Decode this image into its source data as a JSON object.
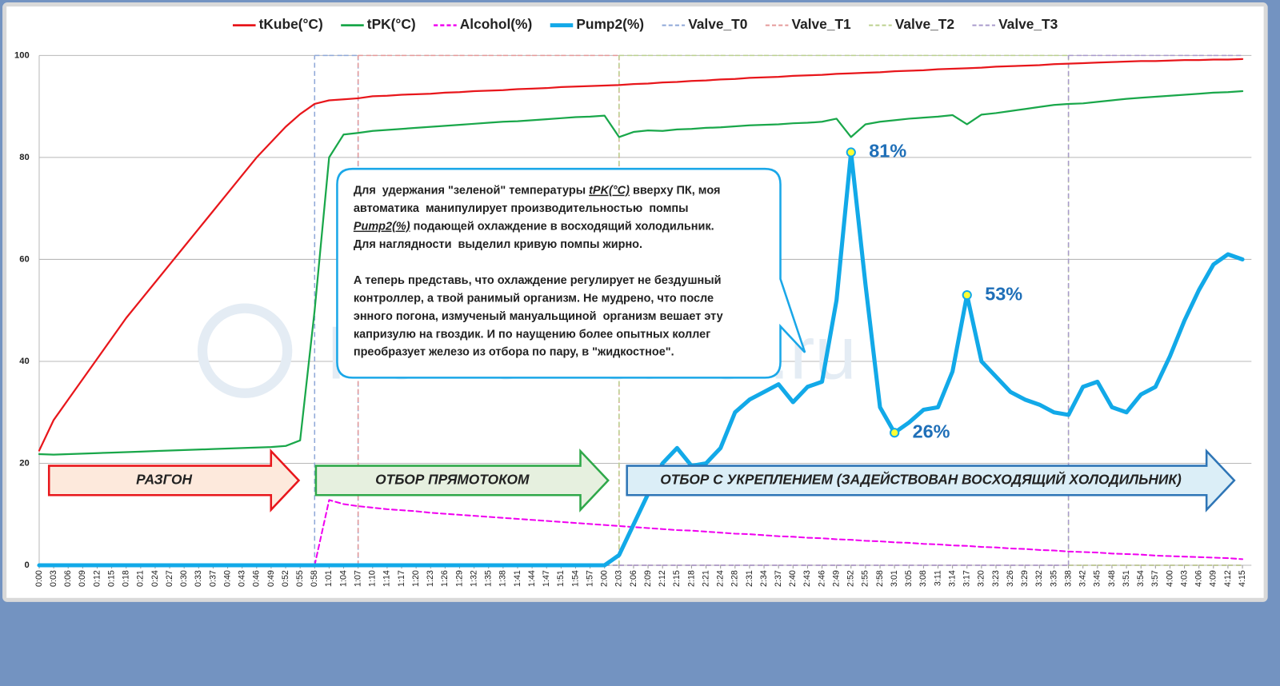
{
  "chart_data": {
    "type": "line",
    "categories": [
      "0:00",
      "0:03",
      "0:06",
      "0:09",
      "0:12",
      "0:15",
      "0:18",
      "0:21",
      "0:24",
      "0:27",
      "0:30",
      "0:33",
      "0:37",
      "0:40",
      "0:43",
      "0:46",
      "0:49",
      "0:52",
      "0:55",
      "0:58",
      "1:01",
      "1:04",
      "1:07",
      "1:10",
      "1:14",
      "1:17",
      "1:20",
      "1:23",
      "1:26",
      "1:29",
      "1:32",
      "1:35",
      "1:38",
      "1:41",
      "1:44",
      "1:47",
      "1:51",
      "1:54",
      "1:57",
      "2:00",
      "2:03",
      "2:06",
      "2:09",
      "2:12",
      "2:15",
      "2:18",
      "2:21",
      "2:24",
      "2:28",
      "2:31",
      "2:34",
      "2:37",
      "2:40",
      "2:43",
      "2:46",
      "2:49",
      "2:52",
      "2:55",
      "2:58",
      "3:01",
      "3:05",
      "3:08",
      "3:11",
      "3:14",
      "3:17",
      "3:20",
      "3:23",
      "3:26",
      "3:29",
      "3:32",
      "3:35",
      "3:38",
      "3:42",
      "3:45",
      "3:48",
      "3:51",
      "3:54",
      "3:57",
      "4:00",
      "4:03",
      "4:06",
      "4:09",
      "4:12",
      "4:15"
    ],
    "ylim": [
      0,
      100
    ],
    "yticks": [
      0,
      20,
      40,
      60,
      80,
      100
    ],
    "grid": true,
    "legend": "top",
    "series": [
      {
        "name": "tKube(°C)",
        "color": "#e8161b",
        "line_width": 2.2,
        "line_style": "solid",
        "values": [
          22.5,
          28.5,
          32.5,
          36.5,
          40.5,
          44.5,
          48.5,
          52,
          55.5,
          59,
          62.5,
          66,
          69.5,
          73,
          76.5,
          80,
          83,
          86,
          88.5,
          90.5,
          91.2,
          91.4,
          91.6,
          92,
          92.1,
          92.3,
          92.4,
          92.5,
          92.7,
          92.8,
          93,
          93.1,
          93.2,
          93.4,
          93.5,
          93.6,
          93.8,
          93.9,
          94,
          94.1,
          94.2,
          94.4,
          94.5,
          94.7,
          94.8,
          95,
          95.1,
          95.3,
          95.4,
          95.6,
          95.7,
          95.8,
          96,
          96.1,
          96.2,
          96.4,
          96.5,
          96.6,
          96.7,
          96.9,
          97,
          97.1,
          97.3,
          97.4,
          97.5,
          97.6,
          97.8,
          97.9,
          98,
          98.1,
          98.3,
          98.4,
          98.5,
          98.6,
          98.7,
          98.8,
          98.9,
          98.9,
          99,
          99.1,
          99.1,
          99.2,
          99.2,
          99.3
        ]
      },
      {
        "name": "tPK(°C)",
        "color": "#19a74a",
        "line_width": 2.2,
        "line_style": "solid",
        "values": [
          21.8,
          21.7,
          21.8,
          21.9,
          22,
          22.1,
          22.2,
          22.3,
          22.4,
          22.5,
          22.6,
          22.7,
          22.8,
          22.9,
          23,
          23.1,
          23.2,
          23.4,
          24.5,
          50,
          80,
          84.5,
          84.8,
          85.2,
          85.4,
          85.6,
          85.8,
          86,
          86.2,
          86.4,
          86.6,
          86.8,
          87,
          87.1,
          87.3,
          87.5,
          87.7,
          87.9,
          88,
          88.2,
          84,
          85,
          85.3,
          85.2,
          85.5,
          85.6,
          85.8,
          85.9,
          86.1,
          86.3,
          86.4,
          86.5,
          86.7,
          86.8,
          87,
          87.6,
          84,
          86.5,
          87,
          87.3,
          87.6,
          87.8,
          88,
          88.3,
          86.5,
          88.4,
          88.7,
          89.1,
          89.5,
          89.9,
          90.3,
          90.5,
          90.6,
          90.9,
          91.2,
          91.5,
          91.7,
          91.9,
          92.1,
          92.3,
          92.5,
          92.7,
          92.8,
          93
        ]
      },
      {
        "name": "Alcohol(%)",
        "color": "#f000f0",
        "line_width": 2,
        "line_style": "dashed",
        "values": [
          null,
          null,
          null,
          null,
          null,
          null,
          null,
          null,
          null,
          null,
          null,
          null,
          null,
          null,
          null,
          null,
          null,
          null,
          null,
          0,
          12.8,
          12,
          11.6,
          11.3,
          11,
          10.8,
          10.6,
          10.3,
          10.1,
          9.9,
          9.7,
          9.5,
          9.3,
          9.1,
          8.9,
          8.7,
          8.5,
          8.3,
          8.1,
          7.9,
          7.7,
          7.5,
          7.3,
          7.1,
          6.9,
          6.8,
          6.6,
          6.4,
          6.2,
          6.1,
          5.9,
          5.7,
          5.6,
          5.4,
          5.3,
          5.1,
          5,
          4.8,
          4.7,
          4.5,
          4.4,
          4.2,
          4.1,
          3.9,
          3.8,
          3.6,
          3.5,
          3.3,
          3.2,
          3,
          2.9,
          2.7,
          2.6,
          2.5,
          2.3,
          2.2,
          2.1,
          1.9,
          1.8,
          1.7,
          1.6,
          1.5,
          1.4,
          1.2
        ]
      },
      {
        "name": "Pump2(%)",
        "color": "#12a9e8",
        "line_width": 5,
        "line_style": "solid",
        "values": [
          0,
          0,
          0,
          0,
          0,
          0,
          0,
          0,
          0,
          0,
          0,
          0,
          0,
          0,
          0,
          0,
          0,
          0,
          0,
          0,
          0,
          0,
          0,
          0,
          0,
          0,
          0,
          0,
          0,
          0,
          0,
          0,
          0,
          0,
          0,
          0,
          0,
          0,
          0,
          0,
          2,
          8,
          14,
          20,
          23,
          19.5,
          20,
          23,
          30,
          32.5,
          34,
          35.5,
          32,
          35,
          36,
          52,
          81,
          55,
          31,
          26,
          28,
          30.5,
          31,
          38,
          53,
          40,
          37,
          34,
          32.5,
          31.5,
          30,
          29.5,
          35,
          36,
          31,
          30,
          33.5,
          35,
          41,
          48,
          54,
          59,
          61,
          60
        ],
        "value_labels": [
          null,
          null,
          null,
          null,
          null,
          null,
          null,
          null,
          null,
          null,
          null,
          null,
          null,
          null,
          null,
          null,
          null,
          null,
          null,
          null,
          null,
          null,
          null,
          null,
          null,
          null,
          null,
          null,
          null,
          null,
          null,
          null,
          null,
          null,
          null,
          null,
          null,
          null,
          null,
          null,
          null,
          null,
          null,
          null,
          null,
          null,
          null,
          null,
          null,
          null,
          null,
          null,
          null,
          null,
          null,
          null,
          "81%",
          null,
          null,
          "26%",
          null,
          null,
          null,
          null,
          "53%",
          null,
          null,
          null,
          null,
          null,
          null,
          null,
          null,
          null,
          null,
          null,
          null,
          null,
          null,
          null,
          null,
          null,
          null,
          null
        ]
      },
      {
        "name": "Valve_T0",
        "color": "#8fa8d8",
        "line_width": 1.5,
        "line_style": "dashed",
        "step": true,
        "values": [
          0,
          0,
          0,
          0,
          0,
          0,
          0,
          0,
          0,
          0,
          0,
          0,
          0,
          0,
          0,
          0,
          0,
          0,
          0,
          100,
          100,
          100,
          0,
          0,
          0,
          0,
          0,
          0,
          0,
          0,
          0,
          0,
          0,
          0,
          0,
          0,
          0,
          0,
          0,
          0,
          0,
          0,
          0,
          0,
          0,
          0,
          0,
          0,
          0,
          0,
          0,
          0,
          0,
          0,
          0,
          0,
          0,
          0,
          0,
          0,
          0,
          0,
          0,
          0,
          0,
          0,
          0,
          0,
          0,
          0,
          0,
          0,
          0,
          0,
          0,
          0,
          0,
          0,
          0,
          0,
          0,
          0,
          0,
          0
        ]
      },
      {
        "name": "Valve_T1",
        "color": "#e59a9a",
        "line_width": 1.5,
        "line_style": "dashed",
        "step": true,
        "values": [
          0,
          0,
          0,
          0,
          0,
          0,
          0,
          0,
          0,
          0,
          0,
          0,
          0,
          0,
          0,
          0,
          0,
          0,
          0,
          0,
          0,
          0,
          100,
          100,
          100,
          100,
          100,
          100,
          100,
          100,
          100,
          100,
          100,
          100,
          100,
          100,
          100,
          100,
          100,
          100,
          0,
          0,
          0,
          0,
          0,
          0,
          0,
          0,
          0,
          0,
          0,
          0,
          0,
          0,
          0,
          0,
          0,
          0,
          0,
          0,
          0,
          0,
          0,
          0,
          0,
          0,
          0,
          0,
          0,
          0,
          0,
          0,
          0,
          0,
          0,
          0,
          0,
          0,
          0,
          0,
          0,
          0,
          0,
          0
        ]
      },
      {
        "name": "Valve_T2",
        "color": "#bcd18f",
        "line_width": 1.5,
        "line_style": "dashed",
        "step": true,
        "values": [
          0,
          0,
          0,
          0,
          0,
          0,
          0,
          0,
          0,
          0,
          0,
          0,
          0,
          0,
          0,
          0,
          0,
          0,
          0,
          0,
          0,
          0,
          0,
          0,
          0,
          0,
          0,
          0,
          0,
          0,
          0,
          0,
          0,
          0,
          0,
          0,
          0,
          0,
          0,
          0,
          100,
          100,
          100,
          100,
          100,
          100,
          100,
          100,
          100,
          100,
          100,
          100,
          100,
          100,
          100,
          100,
          100,
          100,
          100,
          100,
          100,
          100,
          100,
          100,
          100,
          100,
          100,
          100,
          100,
          100,
          100,
          0,
          0,
          0,
          0,
          0,
          0,
          0,
          0,
          0,
          0,
          0,
          0,
          0
        ]
      },
      {
        "name": "Valve_T3",
        "color": "#a99bcc",
        "line_width": 1.5,
        "line_style": "dashed",
        "step": true,
        "values": [
          0,
          0,
          0,
          0,
          0,
          0,
          0,
          0,
          0,
          0,
          0,
          0,
          0,
          0,
          0,
          0,
          0,
          0,
          0,
          0,
          0,
          0,
          0,
          0,
          0,
          0,
          0,
          0,
          0,
          0,
          0,
          0,
          0,
          0,
          0,
          0,
          0,
          0,
          0,
          0,
          0,
          0,
          0,
          0,
          0,
          0,
          0,
          0,
          0,
          0,
          0,
          0,
          0,
          0,
          0,
          0,
          0,
          0,
          0,
          0,
          0,
          0,
          0,
          0,
          0,
          0,
          0,
          0,
          0,
          0,
          0,
          100,
          100,
          100,
          100,
          100,
          100,
          100,
          100,
          100,
          100,
          100,
          100,
          100
        ]
      }
    ],
    "watermark": "HomeDistiller.ru",
    "stage_arrows": [
      {
        "text": "РАЗГОН"
      },
      {
        "text": "ОТБОР ПРЯМОТОКОМ"
      },
      {
        "text": "ОТБОР  С УКРЕПЛЕНИЕМ (ЗАДЕЙСТВОВАН ВОСХОДЯЩИЙ ХОЛОДИЛЬНИК)"
      }
    ],
    "callout": {
      "paragraphs": [
        [
          [
            "Для  удержания \"зеленой\" температуры ",
            {
              "text": "tPK(°C)",
              "emphasis": true
            },
            " вверху ПК, моя"
          ],
          [
            "автоматика  манипулирует производительностью  помпы"
          ],
          [
            {
              "text": "Pump2(%)",
              "emphasis": true
            },
            " подающей охлаждение в восходящий холодильник."
          ],
          [
            "Для наглядности  выделил кривую помпы жирно."
          ]
        ],
        [
          [
            "А теперь представь, что охлаждение регулирует не бездушный"
          ],
          [
            "контроллер, а твой ранимый организм. Не мудрено, что после"
          ],
          [
            "энного погона, измученый мануальщиной  организм вешает эту"
          ],
          [
            "капризулю на гвоздик. И по наущению более опытных коллег"
          ],
          [
            "преобразует железо из отбора по пару, в \"жидкостное\"."
          ]
        ]
      ]
    }
  }
}
